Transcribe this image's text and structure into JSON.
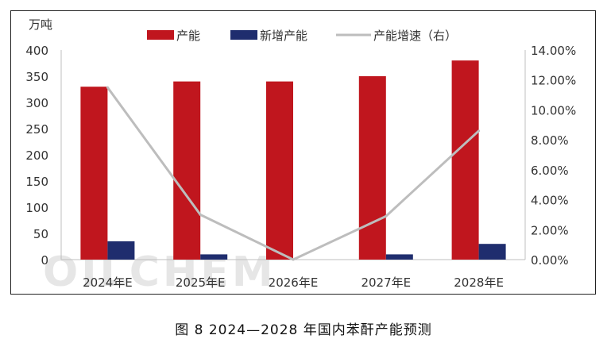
{
  "caption": "图 8  2024—2028 年国内苯酐产能预测",
  "watermark": "OILCHEM",
  "chart_data": {
    "type": "bar",
    "categories": [
      "2024年E",
      "2025年E",
      "2026年E",
      "2027年E",
      "2028年E"
    ],
    "series": [
      {
        "name": "产能",
        "kind": "bar",
        "axis": "left",
        "color": "#c0161e",
        "values": [
          330,
          340,
          340,
          350,
          380
        ]
      },
      {
        "name": "新增产能",
        "kind": "bar",
        "axis": "left",
        "color": "#1f2d6e",
        "values": [
          35,
          10,
          0,
          10,
          30
        ]
      },
      {
        "name": "产能增速（右）",
        "kind": "line",
        "axis": "right",
        "color": "#bdbdbd",
        "values": [
          0.115,
          0.03,
          0.0,
          0.029,
          0.086
        ]
      }
    ],
    "y_left": {
      "unit": "万吨",
      "min": 0,
      "max": 400,
      "ticks": [
        "0",
        "50",
        "100",
        "150",
        "200",
        "250",
        "300",
        "350",
        "400"
      ]
    },
    "y_right": {
      "min": 0,
      "max": 0.14,
      "ticks": [
        "0.00%",
        "2.00%",
        "4.00%",
        "6.00%",
        "8.00%",
        "10.00%",
        "12.00%",
        "14.00%"
      ]
    },
    "legend_position": "top",
    "grid": false
  }
}
